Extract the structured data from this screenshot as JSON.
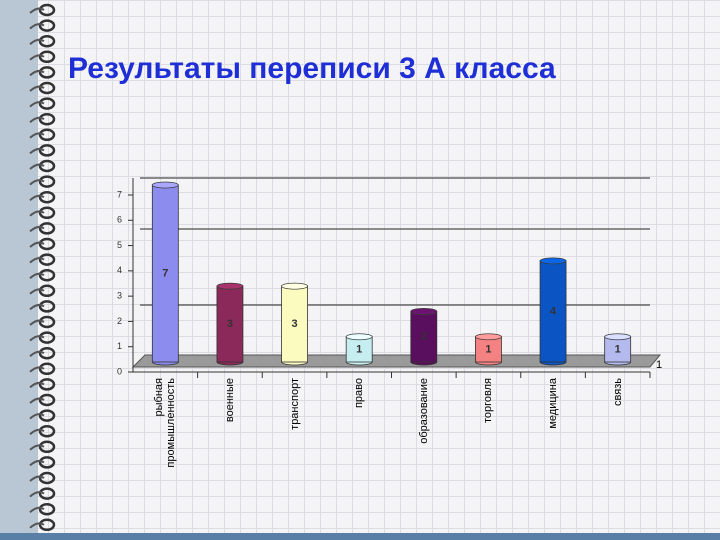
{
  "chart_data": {
    "type": "bar",
    "title": "Результаты переписи 3 А класса",
    "categories": [
      "рыбная промышленность",
      "военные",
      "транспорт",
      "право",
      "образование",
      "торговля",
      "медицина",
      "связь"
    ],
    "series": [
      {
        "name": "1",
        "colors": [
          "#8c8cee",
          "#8b2a5a",
          "#fbfbc0",
          "#c6eef0",
          "#5a0f5e",
          "#f58282",
          "#0a55c3",
          "#b4baee"
        ],
        "values": [
          7,
          3,
          3,
          1,
          2,
          1,
          4,
          1
        ]
      }
    ],
    "ylim": [
      0,
      7
    ],
    "yticks": [
      0,
      1,
      2,
      3,
      4,
      5,
      6,
      7
    ]
  }
}
